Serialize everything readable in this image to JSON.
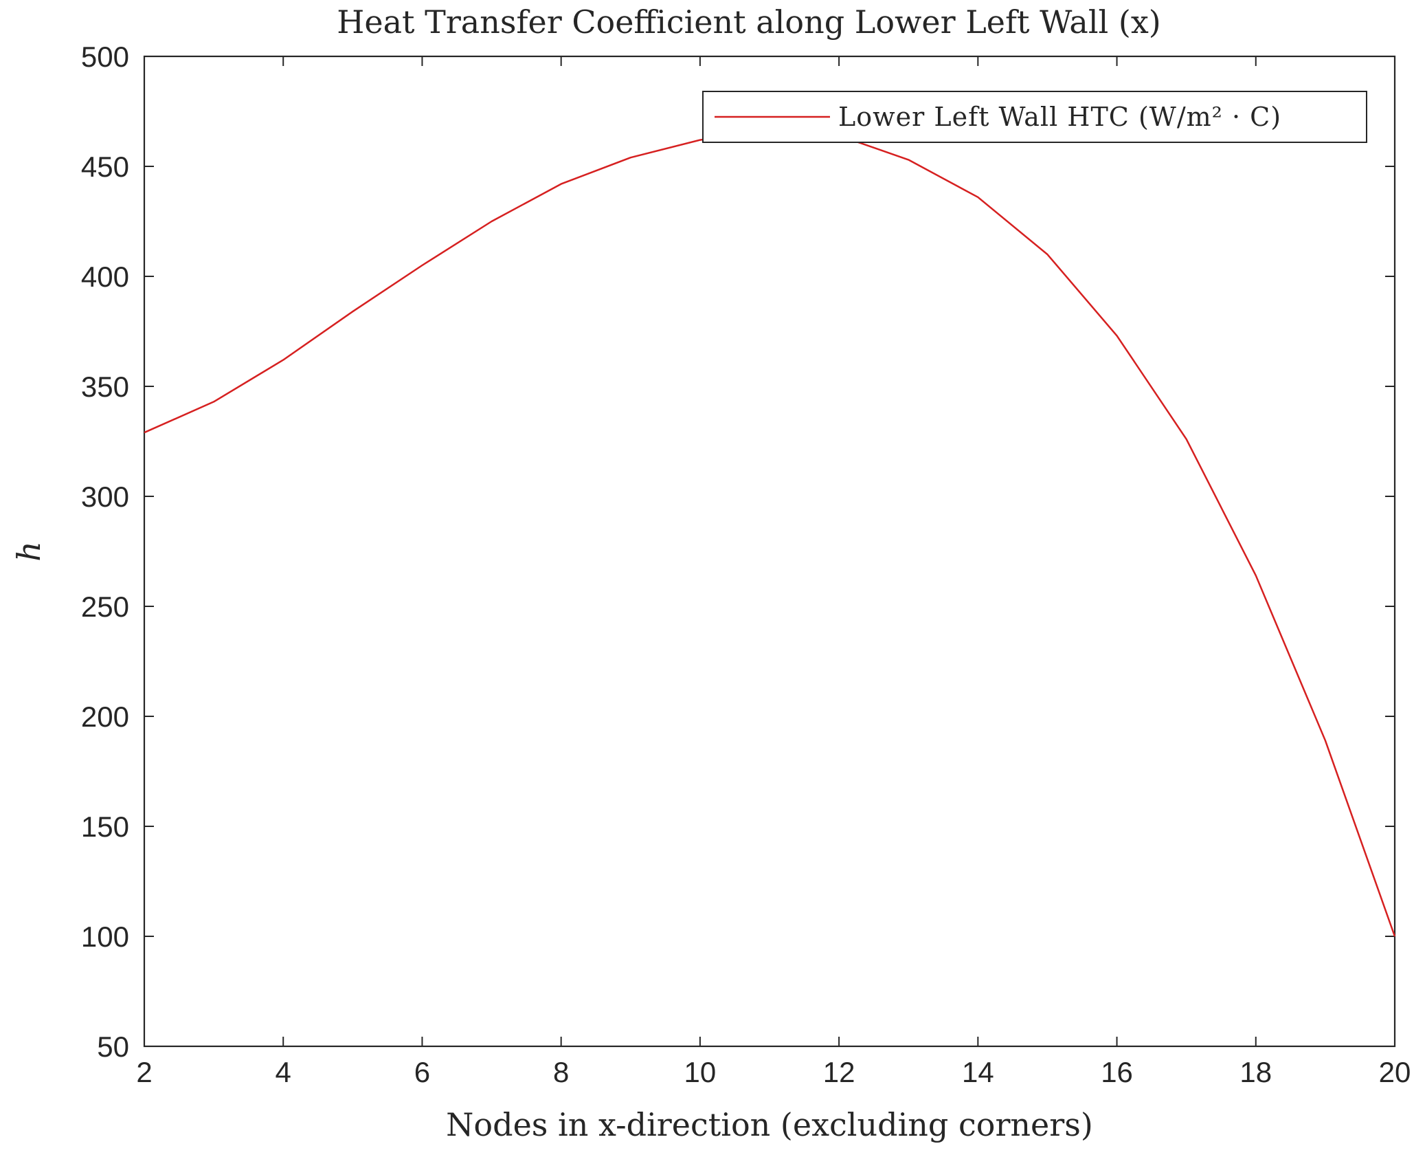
{
  "chart_data": {
    "type": "line",
    "title": "Heat Transfer Coefficient along Lower Left Wall (x)",
    "xlabel": "Nodes in x-direction (excluding corners)",
    "ylabel": "h",
    "xlim": [
      2,
      20
    ],
    "ylim": [
      50,
      500
    ],
    "xticks": [
      2,
      4,
      6,
      8,
      10,
      12,
      14,
      16,
      18,
      20
    ],
    "yticks": [
      50,
      100,
      150,
      200,
      250,
      300,
      350,
      400,
      450,
      500
    ],
    "grid": false,
    "legend_position": "top-right",
    "series": [
      {
        "name": "Lower Left Wall HTC (W/m² · C)",
        "color": "#d62020",
        "x": [
          2,
          3,
          4,
          5,
          6,
          7,
          8,
          9,
          10,
          11,
          12,
          13,
          14,
          15,
          16,
          17,
          18,
          19,
          20
        ],
        "y": [
          329,
          343,
          362,
          384,
          405,
          425,
          442,
          454,
          462,
          467,
          464,
          453,
          436,
          410,
          373,
          326,
          264,
          189,
          100
        ]
      }
    ]
  }
}
